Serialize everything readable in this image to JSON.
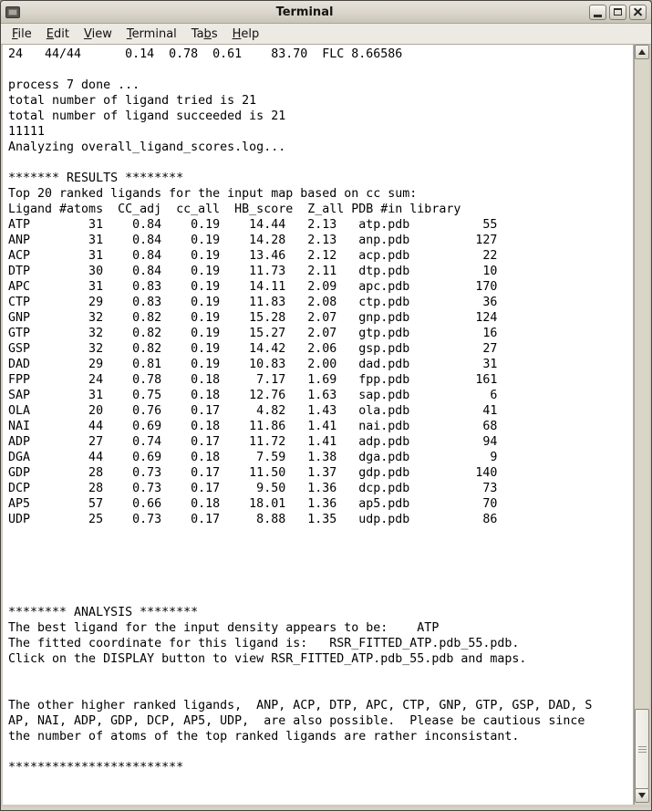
{
  "colors": {
    "titlebar": "#D6D2C7",
    "menubar": "#EDEAE3",
    "terminal_bg": "#FFFFFF",
    "terminal_text": "#000000",
    "scrollbar_trough": "#D9D5C7"
  },
  "window": {
    "title": "Terminal"
  },
  "menu": {
    "items": [
      {
        "label": "File",
        "mnemonic": "F"
      },
      {
        "label": "Edit",
        "mnemonic": "E"
      },
      {
        "label": "View",
        "mnemonic": "V"
      },
      {
        "label": "Terminal",
        "mnemonic": "T"
      },
      {
        "label": "Tabs",
        "mnemonic": "b"
      },
      {
        "label": "Help",
        "mnemonic": "H"
      }
    ]
  },
  "terminal": {
    "top_line": "24   44/44      0.14  0.78  0.61    83.70  FLC 8.66586",
    "pre_lines": [
      "process 7 done ...",
      "total number of ligand tried is 21",
      "total number of ligand succeeded is 21",
      "11111",
      "Analyzing overall_ligand_scores.log..."
    ],
    "results": {
      "banner": "******* RESULTS ********",
      "intro": "Top 20 ranked ligands for the input map based on cc sum:",
      "header_line": "Ligand #atoms  CC_adj  cc_all  HB_score  Z_all PDB #in library",
      "columns": [
        "Ligand",
        "#atoms",
        "CC_adj",
        "cc_all",
        "HB_score",
        "Z_all",
        "PDB",
        "#in library"
      ],
      "rows": [
        [
          "ATP",
          "31",
          "0.84",
          "0.19",
          "14.44",
          "2.13",
          "atp.pdb",
          "55"
        ],
        [
          "ANP",
          "31",
          "0.84",
          "0.19",
          "14.28",
          "2.13",
          "anp.pdb",
          "127"
        ],
        [
          "ACP",
          "31",
          "0.84",
          "0.19",
          "13.46",
          "2.12",
          "acp.pdb",
          "22"
        ],
        [
          "DTP",
          "30",
          "0.84",
          "0.19",
          "11.73",
          "2.11",
          "dtp.pdb",
          "10"
        ],
        [
          "APC",
          "31",
          "0.83",
          "0.19",
          "14.11",
          "2.09",
          "apc.pdb",
          "170"
        ],
        [
          "CTP",
          "29",
          "0.83",
          "0.19",
          "11.83",
          "2.08",
          "ctp.pdb",
          "36"
        ],
        [
          "GNP",
          "32",
          "0.82",
          "0.19",
          "15.28",
          "2.07",
          "gnp.pdb",
          "124"
        ],
        [
          "GTP",
          "32",
          "0.82",
          "0.19",
          "15.27",
          "2.07",
          "gtp.pdb",
          "16"
        ],
        [
          "GSP",
          "32",
          "0.82",
          "0.19",
          "14.42",
          "2.06",
          "gsp.pdb",
          "27"
        ],
        [
          "DAD",
          "29",
          "0.81",
          "0.19",
          "10.83",
          "2.00",
          "dad.pdb",
          "31"
        ],
        [
          "FPP",
          "24",
          "0.78",
          "0.18",
          "7.17",
          "1.69",
          "fpp.pdb",
          "161"
        ],
        [
          "SAP",
          "31",
          "0.75",
          "0.18",
          "12.76",
          "1.63",
          "sap.pdb",
          "6"
        ],
        [
          "OLA",
          "20",
          "0.76",
          "0.17",
          "4.82",
          "1.43",
          "ola.pdb",
          "41"
        ],
        [
          "NAI",
          "44",
          "0.69",
          "0.18",
          "11.86",
          "1.41",
          "nai.pdb",
          "68"
        ],
        [
          "ADP",
          "27",
          "0.74",
          "0.17",
          "11.72",
          "1.41",
          "adp.pdb",
          "94"
        ],
        [
          "DGA",
          "44",
          "0.69",
          "0.18",
          "7.59",
          "1.38",
          "dga.pdb",
          "9"
        ],
        [
          "GDP",
          "28",
          "0.73",
          "0.17",
          "11.50",
          "1.37",
          "gdp.pdb",
          "140"
        ],
        [
          "DCP",
          "28",
          "0.73",
          "0.17",
          "9.50",
          "1.36",
          "dcp.pdb",
          "73"
        ],
        [
          "AP5",
          "57",
          "0.66",
          "0.18",
          "18.01",
          "1.36",
          "ap5.pdb",
          "70"
        ],
        [
          "UDP",
          "25",
          "0.73",
          "0.17",
          "8.88",
          "1.35",
          "udp.pdb",
          "86"
        ]
      ]
    },
    "analysis": {
      "banner": "******** ANALYSIS ********",
      "lines": [
        "The best ligand for the input density appears to be:    ATP",
        "The fitted coordinate for this ligand is:   RSR_FITTED_ATP.pdb_55.pdb.",
        "Click on the DISPLAY button to view RSR_FITTED_ATP.pdb_55.pdb and maps."
      ],
      "note_lines": [
        "The other higher ranked ligands,  ANP, ACP, DTP, APC, CTP, GNP, GTP, GSP, DAD, S",
        "AP, NAI, ADP, GDP, DCP, AP5, UDP,  are also possible.  Please be cautious since",
        "the number of atoms of the top ranked ligands are rather inconsistant."
      ]
    },
    "footer": "************************"
  }
}
